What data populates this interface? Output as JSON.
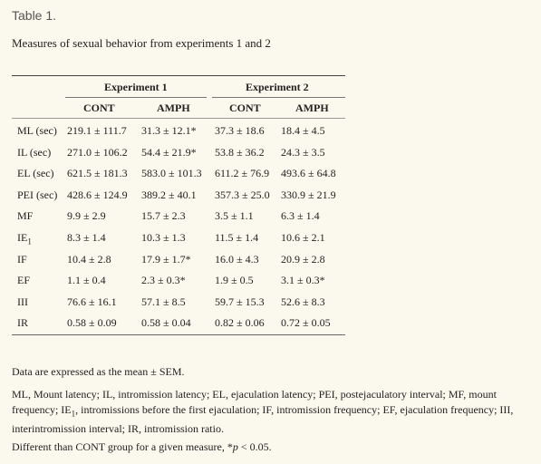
{
  "table_label": "Table 1.",
  "caption": "Measures of sexual behavior from experiments 1 and 2",
  "experiments": [
    "Experiment 1",
    "Experiment 2"
  ],
  "columns": [
    "CONT",
    "AMPH",
    "CONT",
    "AMPH"
  ],
  "rows": [
    {
      "measure": "ML (sec)",
      "values": [
        "219.1 ± 111.7",
        "31.3 ± 12.1*",
        "37.3 ± 18.6",
        "18.4 ± 4.5"
      ]
    },
    {
      "measure": "IL (sec)",
      "values": [
        "271.0 ± 106.2",
        "54.4 ± 21.9*",
        "53.8 ± 36.2",
        "24.3 ± 3.5"
      ]
    },
    {
      "measure": "EL (sec)",
      "values": [
        "621.5 ± 181.3",
        "583.0 ± 101.3",
        "611.2 ± 76.9",
        "493.6 ± 64.8"
      ]
    },
    {
      "measure": "PEI (sec)",
      "values": [
        "428.6 ± 124.9",
        "389.2 ± 40.1",
        "357.3 ± 25.0",
        "330.9 ± 21.9"
      ]
    },
    {
      "measure": "MF",
      "values": [
        "9.9 ± 2.9",
        "15.7 ± 2.3",
        "3.5 ± 1.1",
        "6.3 ± 1.4"
      ]
    },
    {
      "measure": "IE",
      "measure_sub": "1",
      "values": [
        "8.3 ± 1.4",
        "10.3 ± 1.3",
        "11.5 ± 1.4",
        "10.6 ± 2.1"
      ]
    },
    {
      "measure": "IF",
      "values": [
        "10.4 ± 2.8",
        "17.9 ± 1.7*",
        "16.0 ± 4.3",
        "20.9 ± 2.8"
      ]
    },
    {
      "measure": "EF",
      "values": [
        "1.1 ± 0.4",
        "2.3 ± 0.3*",
        "1.9 ± 0.5",
        "3.1 ± 0.3*"
      ]
    },
    {
      "measure": "III",
      "values": [
        "76.6 ± 16.1",
        "57.1 ± 8.5",
        "59.7 ± 15.3",
        "52.6 ± 8.3"
      ]
    },
    {
      "measure": "IR",
      "values": [
        "0.58 ± 0.09",
        "0.58 ± 0.04",
        "0.82 ± 0.06",
        "0.72 ± 0.05"
      ]
    }
  ],
  "footnotes": {
    "mean": "Data are expressed as the mean ± SEM.",
    "abbrev_a": "ML, Mount latency; IL, intromission latency; EL, ejaculation latency; PEI, postejaculatory interval; MF, mount frequency; IE",
    "abbrev_sub": "1",
    "abbrev_b": ", intromissions before the first ejaculation; IF, intromission frequency; EF, ejaculation frequency; III, interintromission interval; IR, intromission ratio.",
    "diff_a": "Different than CONT group for a given measure, *",
    "diff_p": "p",
    "diff_b": " < 0.05."
  }
}
